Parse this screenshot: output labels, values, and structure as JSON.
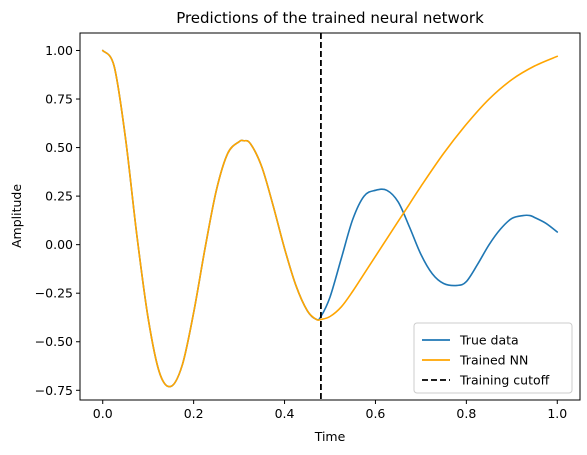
{
  "chart_data": {
    "type": "line",
    "title": "Predictions of the trained neural network",
    "xlabel": "Time",
    "ylabel": "Amplitude",
    "xlim": [
      -0.05,
      1.05
    ],
    "ylim": [
      -0.8,
      1.09
    ],
    "xticks": [
      0.0,
      0.2,
      0.4,
      0.6,
      0.8,
      1.0
    ],
    "xtick_labels": [
      "0.0",
      "0.2",
      "0.4",
      "0.6",
      "0.8",
      "1.0"
    ],
    "yticks": [
      -0.75,
      -0.5,
      -0.25,
      0.0,
      0.25,
      0.5,
      0.75,
      1.0
    ],
    "ytick_labels": [
      "−0.75",
      "−0.50",
      "−0.25",
      "0.00",
      "0.25",
      "0.50",
      "0.75",
      "1.00"
    ],
    "grid": false,
    "legend_position": "lower-right",
    "series": [
      {
        "name": "True data",
        "color": "#1f77b4",
        "style": "solid",
        "x": [
          0.0,
          0.025,
          0.05,
          0.075,
          0.1,
          0.125,
          0.15,
          0.175,
          0.2,
          0.225,
          0.25,
          0.275,
          0.3,
          0.31,
          0.325,
          0.35,
          0.375,
          0.4,
          0.425,
          0.45,
          0.47,
          0.48,
          0.5,
          0.525,
          0.55,
          0.575,
          0.6,
          0.625,
          0.65,
          0.675,
          0.7,
          0.725,
          0.75,
          0.78,
          0.8,
          0.825,
          0.85,
          0.875,
          0.9,
          0.925,
          0.94,
          0.95,
          0.975,
          1.0
        ],
        "y": [
          1.0,
          0.92,
          0.55,
          0.05,
          -0.38,
          -0.66,
          -0.73,
          -0.62,
          -0.35,
          -0.02,
          0.28,
          0.47,
          0.53,
          0.535,
          0.52,
          0.4,
          0.2,
          -0.02,
          -0.21,
          -0.34,
          -0.385,
          -0.37,
          -0.27,
          -0.07,
          0.13,
          0.25,
          0.28,
          0.28,
          0.22,
          0.09,
          -0.05,
          -0.15,
          -0.2,
          -0.21,
          -0.19,
          -0.1,
          0.0,
          0.08,
          0.135,
          0.15,
          0.15,
          0.14,
          0.11,
          0.065
        ]
      },
      {
        "name": "Trained NN",
        "color": "#ffa500",
        "style": "solid",
        "x": [
          0.0,
          0.025,
          0.05,
          0.075,
          0.1,
          0.125,
          0.15,
          0.175,
          0.2,
          0.225,
          0.25,
          0.275,
          0.3,
          0.31,
          0.325,
          0.35,
          0.375,
          0.4,
          0.425,
          0.45,
          0.47,
          0.48,
          0.5,
          0.525,
          0.55,
          0.575,
          0.6,
          0.625,
          0.65,
          0.675,
          0.7,
          0.75,
          0.8,
          0.85,
          0.9,
          0.95,
          1.0
        ],
        "y": [
          1.0,
          0.92,
          0.55,
          0.05,
          -0.38,
          -0.66,
          -0.73,
          -0.62,
          -0.35,
          -0.02,
          0.28,
          0.47,
          0.53,
          0.535,
          0.52,
          0.4,
          0.2,
          -0.02,
          -0.21,
          -0.34,
          -0.385,
          -0.385,
          -0.37,
          -0.32,
          -0.24,
          -0.15,
          -0.06,
          0.03,
          0.12,
          0.21,
          0.3,
          0.47,
          0.62,
          0.75,
          0.85,
          0.92,
          0.97
        ]
      },
      {
        "name": "Training cutoff",
        "color": "#000000",
        "style": "dashed",
        "vline_x": 0.48
      }
    ]
  }
}
